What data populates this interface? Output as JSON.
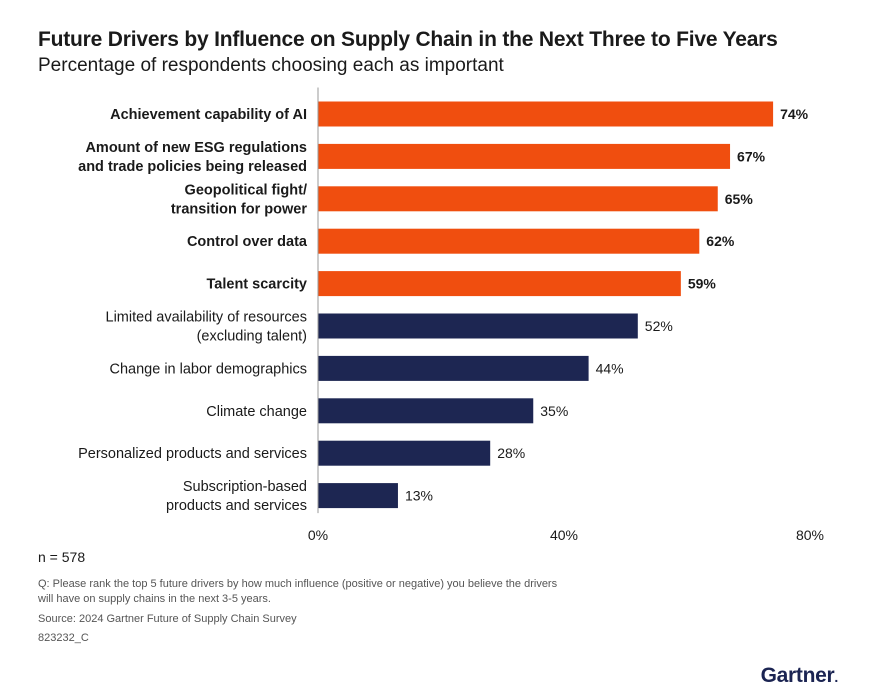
{
  "header": {
    "title": "Future Drivers by Influence on Supply Chain in the Next Three to Five Years",
    "subtitle": "Percentage of respondents choosing each as important"
  },
  "colors": {
    "highlight": "#f04e0f",
    "standard": "#1d2652",
    "text": "#1a1a1a"
  },
  "chart_data": {
    "type": "bar",
    "orientation": "horizontal",
    "categories": [
      [
        "Achievement capability of AI"
      ],
      [
        "Amount of new ESG regulations",
        "and trade policies being released"
      ],
      [
        "Geopolitical fight/",
        "transition for power"
      ],
      [
        "Control over data"
      ],
      [
        "Talent scarcity"
      ],
      [
        "Limited availability of resources",
        "(excluding talent)"
      ],
      [
        "Change in labor demographics"
      ],
      [
        "Climate change"
      ],
      [
        "Personalized products and services"
      ],
      [
        "Subscription-based",
        "products and services"
      ]
    ],
    "values": [
      74,
      67,
      65,
      62,
      59,
      52,
      44,
      35,
      28,
      13
    ],
    "value_labels": [
      "74%",
      "67%",
      "65%",
      "62%",
      "59%",
      "52%",
      "44%",
      "35%",
      "28%",
      "13%"
    ],
    "highlighted": [
      true,
      true,
      true,
      true,
      true,
      false,
      false,
      false,
      false,
      false
    ],
    "xlim": [
      0,
      80
    ],
    "x_ticks": [
      0,
      40,
      80
    ],
    "x_tick_labels": [
      "0%",
      "40%",
      "80%"
    ],
    "grid": false,
    "legend": "none"
  },
  "footer": {
    "n": "n = 578",
    "question": "Q: Please rank the top 5 future drivers by how much influence (positive or negative) you believe the drivers will have on supply chains in the next 3-5 years.",
    "source": "Source: 2024 Gartner Future of Supply Chain Survey",
    "code": "823232_C",
    "brand": "Gartner",
    "brand_mark": "."
  }
}
